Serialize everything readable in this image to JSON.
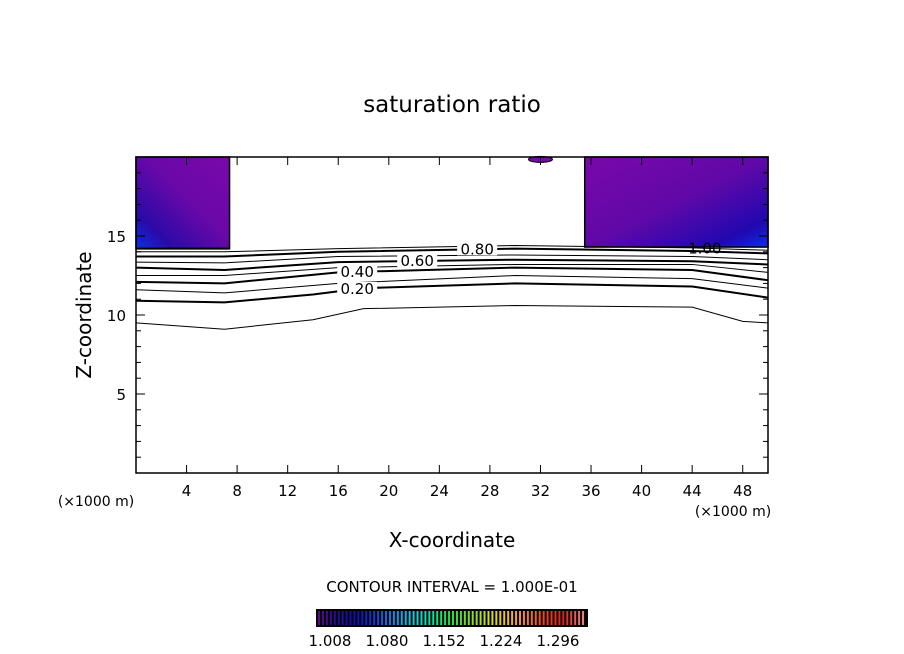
{
  "chart_data": {
    "type": "contour",
    "title": "saturation ratio",
    "xlabel": "X-coordinate",
    "ylabel": "Z-coordinate",
    "x_unit": "(×1000 m)",
    "x_unit_right": "(×1000 m)",
    "xlim": [
      0,
      50
    ],
    "ylim": [
      0,
      20
    ],
    "xticks": [
      4,
      8,
      12,
      16,
      20,
      24,
      28,
      32,
      36,
      40,
      44,
      48
    ],
    "xtick_labels": [
      "4",
      "8",
      "12",
      "16",
      "20",
      "24",
      "28",
      "32",
      "36",
      "40",
      "44",
      "48"
    ],
    "yticks": [
      5,
      10,
      15
    ],
    "ytick_labels": [
      "5",
      "10",
      "15"
    ],
    "contour_interval_label": "CONTOUR INTERVAL = 1.000E-01",
    "contours": [
      {
        "level": 0.1,
        "bold": false,
        "points": [
          [
            0,
            9.5
          ],
          [
            7,
            9.1
          ],
          [
            14,
            9.7
          ],
          [
            18,
            10.4
          ],
          [
            30,
            10.6
          ],
          [
            44,
            10.5
          ],
          [
            48,
            9.6
          ],
          [
            50,
            9.5
          ]
        ]
      },
      {
        "level": 0.2,
        "bold": true,
        "label": "0.20",
        "label_x": 17.5,
        "points": [
          [
            0,
            10.9
          ],
          [
            7,
            10.8
          ],
          [
            14,
            11.3
          ],
          [
            18,
            11.7
          ],
          [
            30,
            12.0
          ],
          [
            44,
            11.8
          ],
          [
            50,
            11.1
          ]
        ]
      },
      {
        "level": 0.3,
        "bold": false,
        "points": [
          [
            0,
            11.6
          ],
          [
            7,
            11.4
          ],
          [
            16,
            12.0
          ],
          [
            30,
            12.5
          ],
          [
            44,
            12.3
          ],
          [
            50,
            11.7
          ]
        ]
      },
      {
        "level": 0.4,
        "bold": true,
        "label": "0.40",
        "label_x": 17.5,
        "points": [
          [
            0,
            12.1
          ],
          [
            7,
            12.0
          ],
          [
            16,
            12.7
          ],
          [
            30,
            13.0
          ],
          [
            44,
            12.85
          ],
          [
            50,
            12.2
          ]
        ]
      },
      {
        "level": 0.5,
        "bold": false,
        "points": [
          [
            0,
            12.5
          ],
          [
            7,
            12.5
          ],
          [
            16,
            13.0
          ],
          [
            30,
            13.2
          ],
          [
            44,
            13.2
          ],
          [
            50,
            12.7
          ]
        ]
      },
      {
        "level": 0.6,
        "bold": true,
        "label": "0.60",
        "label_x": 17.5,
        "points": [
          [
            0,
            13.0
          ],
          [
            7,
            12.85
          ],
          [
            16,
            13.35
          ],
          [
            30,
            13.5
          ],
          [
            44,
            13.4
          ],
          [
            50,
            13.2
          ]
        ]
      },
      {
        "level": 0.7,
        "bold": false,
        "points": [
          [
            0,
            13.35
          ],
          [
            7,
            13.3
          ],
          [
            16,
            13.7
          ],
          [
            30,
            13.8
          ],
          [
            44,
            13.7
          ],
          [
            50,
            13.5
          ]
        ]
      },
      {
        "level": 0.8,
        "bold": true,
        "label": "0.80",
        "label_x": 17.5,
        "points": [
          [
            0,
            13.7
          ],
          [
            7,
            13.7
          ],
          [
            16,
            14.0
          ],
          [
            30,
            14.2
          ],
          [
            44,
            14.05
          ],
          [
            50,
            13.9
          ]
        ]
      },
      {
        "level": 0.9,
        "bold": false,
        "points": [
          [
            0,
            14.0
          ],
          [
            7,
            14.0
          ],
          [
            16,
            14.2
          ],
          [
            30,
            14.4
          ],
          [
            44,
            14.25
          ],
          [
            50,
            14.1
          ]
        ]
      },
      {
        "level": 1.0,
        "bold": true,
        "label": "1.00",
        "label_x": 45,
        "points": [
          [
            0,
            14.2
          ],
          [
            7.4,
            14.2
          ]
        ]
      }
    ],
    "shaded_regions": [
      {
        "name": "left-supersaturated",
        "x": [
          0,
          7.4
        ],
        "z": [
          14.2,
          20
        ]
      },
      {
        "name": "right-supersaturated",
        "x": [
          35.5,
          50
        ],
        "z": [
          14.3,
          20
        ]
      }
    ],
    "colorbar": {
      "min": 1.008,
      "max": 1.35,
      "tick_labels": [
        "1.008",
        "1.080",
        "1.152",
        "1.224",
        "1.296"
      ],
      "colors": [
        "#5a0a8a",
        "#2a0aa0",
        "#0a10c0",
        "#0a40e0",
        "#0a90f0",
        "#10d0e0",
        "#10e0a0",
        "#20e040",
        "#80e020",
        "#d0e020",
        "#f0c020",
        "#f08020",
        "#f04020",
        "#e02020",
        "#f08080"
      ]
    }
  }
}
